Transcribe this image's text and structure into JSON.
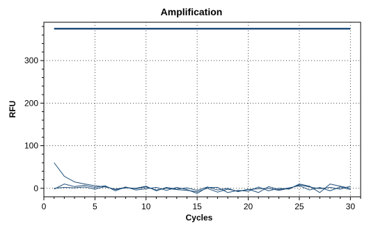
{
  "chart_data": {
    "type": "line",
    "title": "Amplification",
    "xlabel": "Cycles",
    "ylabel": "RFU",
    "xlim": [
      0,
      31
    ],
    "ylim": [
      -20,
      390
    ],
    "x_ticks": [
      0,
      5,
      10,
      15,
      20,
      25,
      30
    ],
    "y_ticks": [
      0,
      100,
      200,
      300
    ],
    "grid": "dotted",
    "legend": "none",
    "series_color": "#1f4e79",
    "series": [
      {
        "x": [
          1,
          2,
          3,
          4,
          5,
          6,
          7,
          8,
          9,
          10,
          11,
          12,
          13,
          14,
          15,
          16,
          17,
          18,
          19,
          20,
          21,
          22,
          23,
          24,
          25,
          26,
          27,
          28,
          29,
          30
        ],
        "values": [
          375,
          375,
          375,
          375,
          375,
          375,
          375,
          375,
          375,
          375,
          375,
          375,
          375,
          375,
          375,
          375,
          375,
          375,
          375,
          375,
          375,
          375,
          375,
          375,
          375,
          375,
          375,
          375,
          375,
          375
        ]
      },
      {
        "x": [
          1,
          2,
          3,
          4,
          5,
          6,
          7,
          8,
          9,
          10,
          11,
          12,
          13,
          14,
          15,
          16,
          17,
          18,
          19,
          20,
          21,
          22,
          23,
          24,
          25,
          26,
          27,
          28,
          29,
          30
        ],
        "values": [
          60,
          28,
          15,
          10,
          6,
          3,
          -2,
          2,
          -1,
          3,
          -4,
          0,
          -3,
          -5,
          -8,
          0,
          -9,
          -2,
          -7,
          -3,
          -1,
          0,
          -5,
          0,
          8,
          3,
          -1,
          2,
          -2,
          5
        ]
      },
      {
        "x": [
          1,
          2,
          3,
          4,
          5,
          6,
          7,
          8,
          9,
          10,
          11,
          12,
          13,
          14,
          15,
          16,
          17,
          18,
          19,
          20,
          21,
          22,
          23,
          24,
          25,
          26,
          27,
          28,
          29,
          30
        ],
        "values": [
          -2,
          10,
          4,
          7,
          2,
          6,
          -6,
          3,
          -4,
          -1,
          2,
          -5,
          2,
          -3,
          -12,
          2,
          2,
          -10,
          -5,
          -7,
          3,
          -6,
          0,
          -2,
          10,
          5,
          -10,
          10,
          5,
          0
        ]
      },
      {
        "x": [
          1,
          2,
          3,
          4,
          5,
          6,
          7,
          8,
          9,
          10,
          11,
          12,
          13,
          14,
          15,
          16,
          17,
          18,
          19,
          20,
          21,
          22,
          23,
          24,
          25,
          26,
          27,
          28,
          29,
          30
        ],
        "values": [
          0,
          2,
          1,
          3,
          -2,
          4,
          -3,
          1,
          0,
          5,
          -6,
          2,
          -2,
          1,
          -5,
          3,
          -4,
          0,
          -8,
          -2,
          -10,
          4,
          -3,
          1,
          6,
          -4,
          2,
          -6,
          3,
          -3
        ]
      }
    ]
  }
}
